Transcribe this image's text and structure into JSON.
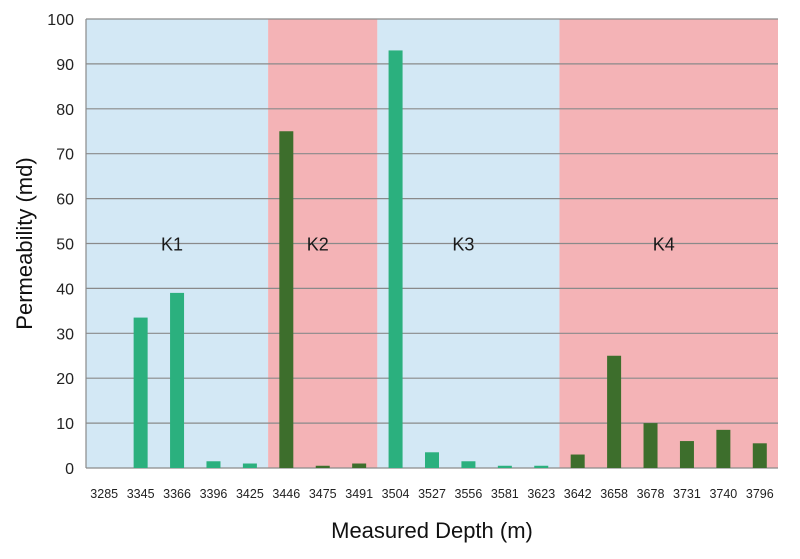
{
  "chart_data": {
    "type": "bar",
    "title": "",
    "xlabel": "Measured Depth (m)",
    "ylabel": "Permeability (md)",
    "ylim": [
      0,
      100
    ],
    "yticks": [
      0,
      10,
      20,
      30,
      40,
      50,
      60,
      70,
      80,
      90,
      100
    ],
    "grid": true,
    "categories": [
      "3285",
      "3345",
      "3366",
      "3396",
      "3425",
      "3446",
      "3475",
      "3491",
      "3504",
      "3527",
      "3556",
      "3581",
      "3623",
      "3642",
      "3658",
      "3678",
      "3731",
      "3740",
      "3796"
    ],
    "values": [
      0,
      33.5,
      39,
      1.5,
      1,
      75,
      0.5,
      1,
      93,
      3.5,
      1.5,
      0.5,
      0.5,
      3,
      25,
      10,
      6,
      8.5,
      5.5
    ],
    "bar_colors": [
      "#2bb07e",
      "#2bb07e",
      "#2bb07e",
      "#2bb07e",
      "#2bb07e",
      "#3d6e2c",
      "#3d6e2c",
      "#3d6e2c",
      "#2bb07e",
      "#2bb07e",
      "#2bb07e",
      "#2bb07e",
      "#2bb07e",
      "#3d6e2c",
      "#3d6e2c",
      "#3d6e2c",
      "#3d6e2c",
      "#3d6e2c",
      "#3d6e2c"
    ],
    "zones": [
      {
        "label": "K1",
        "start_index": 0,
        "end_index": 4,
        "color": "#d3e8f5"
      },
      {
        "label": "K2",
        "start_index": 5,
        "end_index": 7,
        "color": "#f4b3b6"
      },
      {
        "label": "K3",
        "start_index": 8,
        "end_index": 12,
        "color": "#d3e8f5"
      },
      {
        "label": "K4",
        "start_index": 13,
        "end_index": 18,
        "color": "#f4b3b6"
      }
    ]
  }
}
